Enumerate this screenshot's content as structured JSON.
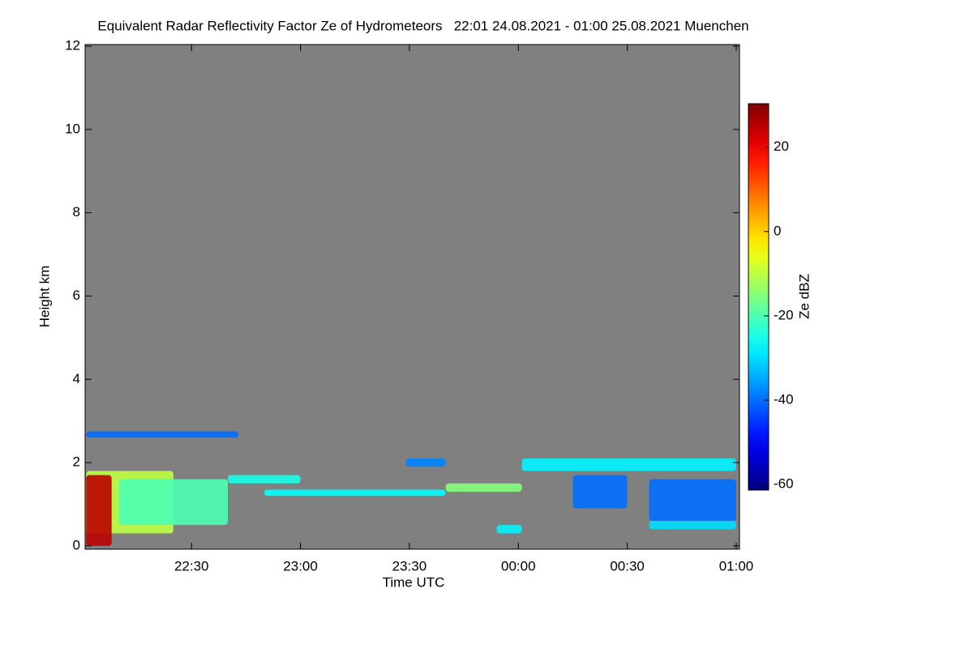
{
  "chart_data": {
    "type": "heatmap",
    "title": "Equivalent Radar Reflectivity Factor Ze of Hydrometeors   22:01 24.08.2021 - 01:00 25.08.2021 Muenchen",
    "x_label": "Time UTC",
    "y_label": "Height km",
    "colorbar_label": "Ze dBZ",
    "xlim": [
      1320.7,
      1500.9
    ],
    "xticks": [
      {
        "value": 1350,
        "label": "22:30"
      },
      {
        "value": 1380,
        "label": "23:00"
      },
      {
        "value": 1410,
        "label": "23:30"
      },
      {
        "value": 1440,
        "label": "00:00"
      },
      {
        "value": 1470,
        "label": "00:30"
      },
      {
        "value": 1500,
        "label": "01:00"
      }
    ],
    "ylim": [
      -0.08,
      12.04
    ],
    "yticks": [
      0,
      2,
      4,
      6,
      8,
      10,
      12
    ],
    "colormap": "jet",
    "background": "#808080",
    "clim": [
      -61.3,
      30.3
    ],
    "cticks": [
      20,
      0,
      -20,
      -40,
      -60
    ],
    "echoes": [
      {
        "t": [
          1321,
          1345
        ],
        "h": [
          0.3,
          1.8
        ],
        "ze": -10
      },
      {
        "t": [
          1330,
          1360
        ],
        "h": [
          0.5,
          1.6
        ],
        "ze": -20
      },
      {
        "t": [
          1321,
          1328
        ],
        "h": [
          0,
          1.7
        ],
        "ze": 25
      },
      {
        "t": [
          1321,
          1363
        ],
        "h": [
          2.6,
          2.75
        ],
        "ze": -40
      },
      {
        "t": [
          1360,
          1380
        ],
        "h": [
          1.5,
          1.7
        ],
        "ze": -25
      },
      {
        "t": [
          1370,
          1420
        ],
        "h": [
          1.2,
          1.35
        ],
        "ze": -27
      },
      {
        "t": [
          1420,
          1441
        ],
        "h": [
          1.3,
          1.5
        ],
        "ze": -15
      },
      {
        "t": [
          1409,
          1420
        ],
        "h": [
          1.9,
          2.1
        ],
        "ze": -38
      },
      {
        "t": [
          1441,
          1500
        ],
        "h": [
          1.8,
          2.1
        ],
        "ze": -28
      },
      {
        "t": [
          1455,
          1470
        ],
        "h": [
          0.9,
          1.7
        ],
        "ze": -40
      },
      {
        "t": [
          1476,
          1500
        ],
        "h": [
          0.6,
          1.6
        ],
        "ze": -40
      },
      {
        "t": [
          1476,
          1500
        ],
        "h": [
          0.4,
          0.6
        ],
        "ze": -30
      },
      {
        "t": [
          1434,
          1441
        ],
        "h": [
          0.3,
          0.5
        ],
        "ze": -28
      }
    ]
  }
}
